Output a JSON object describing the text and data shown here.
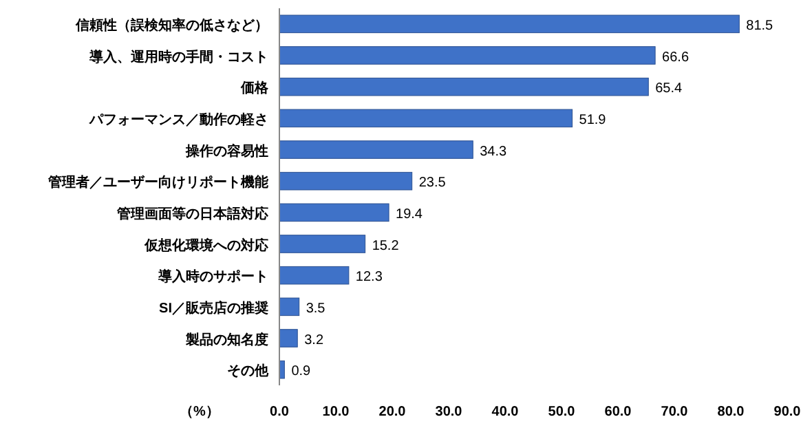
{
  "chart_data": {
    "type": "bar",
    "orientation": "horizontal",
    "xlabel": "（%）",
    "categories": [
      "信頼性（誤検知率の低さなど）",
      "導入、運用時の手間・コスト",
      "価格",
      "パフォーマンス／動作の軽さ",
      "操作の容易性",
      "管理者／ユーザー向けリポート機能",
      "管理画面等の日本語対応",
      "仮想化環境への対応",
      "導入時のサポート",
      "SI／販売店の推奨",
      "製品の知名度",
      "その他"
    ],
    "values": [
      81.5,
      66.6,
      65.4,
      51.9,
      34.3,
      23.5,
      19.4,
      15.2,
      12.3,
      3.5,
      3.2,
      0.9
    ],
    "color": "#3f72c8",
    "data_labels": true,
    "xlim": [
      0,
      90
    ],
    "xticks": [
      {
        "value": 0,
        "label": "0.0"
      },
      {
        "value": 10,
        "label": "10.0"
      },
      {
        "value": 20,
        "label": "20.0"
      },
      {
        "value": 30,
        "label": "30.0"
      },
      {
        "value": 40,
        "label": "40.0"
      },
      {
        "value": 50,
        "label": "50.0"
      },
      {
        "value": 60,
        "label": "60.0"
      },
      {
        "value": 70,
        "label": "70.0"
      },
      {
        "value": 80,
        "label": "80.0"
      },
      {
        "value": 90,
        "label": "90.0"
      }
    ]
  }
}
